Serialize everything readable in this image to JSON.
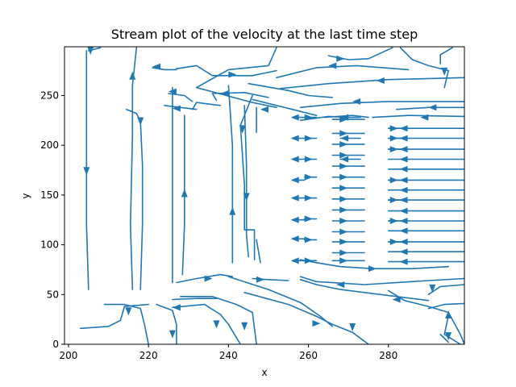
{
  "chart_data": {
    "type": "streamplot",
    "title": "Stream plot of the velocity at the last time step",
    "xlabel": "x",
    "ylabel": "y",
    "xlim": [
      199,
      299
    ],
    "ylim": [
      0,
      299
    ],
    "xticks": [
      200,
      220,
      240,
      260,
      280
    ],
    "yticks": [
      0,
      50,
      100,
      150,
      200,
      250
    ],
    "grid": false,
    "color": "#1f77b4",
    "streamlines": [
      {
        "points": [
          [
            204.5,
            295
          ],
          [
            204.5,
            200
          ],
          [
            204.5,
            120
          ],
          [
            205,
            55
          ]
        ],
        "arrow_at": [
          204.5,
          174
        ],
        "arrow_dir": "down"
      },
      {
        "points": [
          [
            208,
            298
          ],
          [
            205,
            295
          ]
        ],
        "arrow_at": [
          205.5,
          295
        ],
        "arrow_dir": "down"
      },
      {
        "points": [
          [
            217,
            298
          ],
          [
            216,
            260
          ],
          [
            216,
            210
          ],
          [
            215.5,
            120
          ],
          [
            216,
            55
          ]
        ],
        "arrow_at": [
          216,
          270
        ],
        "arrow_dir": "up"
      },
      {
        "points": [
          [
            214.5,
            236
          ],
          [
            217,
            232
          ],
          [
            218,
            224
          ],
          [
            218.5,
            180
          ],
          [
            218.5,
            120
          ],
          [
            218,
            55
          ]
        ],
        "arrow_at": [
          218,
          224
        ],
        "arrow_dir": "down"
      },
      {
        "points": [
          [
            226,
            258
          ],
          [
            226,
            200
          ],
          [
            226,
            120
          ],
          [
            226,
            62
          ]
        ]
      },
      {
        "points": [
          [
            229,
            230
          ],
          [
            229,
            180
          ],
          [
            229,
            120
          ],
          [
            228.5,
            70
          ]
        ],
        "arrow_at": [
          229,
          152
        ],
        "arrow_dir": "up"
      },
      {
        "points": [
          [
            240,
            260
          ],
          [
            241,
            200
          ],
          [
            241,
            160
          ],
          [
            241,
            110
          ],
          [
            241,
            82
          ]
        ],
        "arrow_at": [
          241,
          134
        ],
        "arrow_dir": "up"
      },
      {
        "points": [
          [
            244,
            240
          ],
          [
            244.5,
            180
          ],
          [
            244.5,
            110
          ],
          [
            245,
            88
          ]
        ],
        "arrow_at": [
          244.5,
          148
        ],
        "arrow_dir": "down"
      },
      {
        "points": [
          [
            246,
            250
          ],
          [
            243,
            220
          ],
          [
            244,
            160
          ],
          [
            244,
            115
          ],
          [
            246.5,
            115
          ],
          [
            246.5,
            85
          ]
        ],
        "arrow_at": [
          243.5,
          216
        ],
        "arrow_dir": "down"
      },
      {
        "points": [
          [
            247,
            238
          ],
          [
            247,
            213
          ]
        ]
      },
      {
        "points": [
          [
            247,
            105
          ],
          [
            248,
            82
          ]
        ]
      },
      {
        "points": [
          [
            221,
            278
          ],
          [
            224,
            276
          ],
          [
            227,
            276
          ]
        ],
        "arrow_at": [
          222,
          279
        ],
        "arrow_dir": "left"
      },
      {
        "points": [
          [
            227,
            277
          ],
          [
            232,
            280
          ],
          [
            236,
            270
          ],
          [
            246,
            270
          ],
          [
            252,
            275
          ]
        ]
      },
      {
        "points": [
          [
            225,
            252
          ],
          [
            229,
            250
          ],
          [
            231,
            244
          ]
        ],
        "arrow_at": [
          226,
          254
        ],
        "arrow_dir": "left"
      },
      {
        "points": [
          [
            224,
            240
          ],
          [
            228,
            238
          ],
          [
            232,
            236
          ]
        ],
        "arrow_at": [
          227,
          237
        ],
        "arrow_dir": "left"
      },
      {
        "points": [
          [
            231,
            236
          ],
          [
            232,
            243
          ],
          [
            238,
            240
          ]
        ]
      },
      {
        "points": [
          [
            237,
            245
          ],
          [
            236,
            252
          ],
          [
            244,
            253
          ],
          [
            250,
            248
          ]
        ],
        "arrow_at": [
          239,
          252
        ],
        "arrow_dir": "left"
      },
      {
        "points": [
          [
            252,
            298
          ],
          [
            250,
            280
          ],
          [
            240,
            276
          ],
          [
            232,
            258
          ],
          [
            246,
            243
          ],
          [
            252,
            238
          ]
        ],
        "arrow_at": [
          241,
          271
        ],
        "arrow_dir": "right"
      },
      {
        "points": [
          [
            245,
            262
          ],
          [
            255,
            255
          ],
          [
            260,
            250
          ],
          [
            266,
            248
          ]
        ]
      },
      {
        "points": [
          [
            246,
            246
          ],
          [
            252,
            240
          ],
          [
            256,
            236
          ],
          [
            262,
            230
          ]
        ],
        "arrow_at": [
          249,
          236
        ],
        "arrow_dir": "left"
      },
      {
        "points": [
          [
            252,
            268
          ],
          [
            262,
            278
          ],
          [
            272,
            280
          ],
          [
            285,
            276
          ]
        ],
        "arrow_at": [
          266,
          280
        ],
        "arrow_dir": "left"
      },
      {
        "points": [
          [
            253,
            257
          ],
          [
            265,
            262
          ],
          [
            280,
            266
          ],
          [
            299,
            268
          ]
        ],
        "arrow_at": [
          278,
          265
        ],
        "arrow_dir": "left"
      },
      {
        "points": [
          [
            258,
            238
          ],
          [
            268,
            242
          ],
          [
            280,
            244
          ],
          [
            299,
            244
          ]
        ],
        "arrow_at": [
          272,
          244
        ],
        "arrow_dir": "left"
      },
      {
        "points": [
          [
            258,
            225
          ],
          [
            265,
            229
          ],
          [
            270,
            228
          ]
        ]
      },
      {
        "points": [
          [
            264,
            228
          ],
          [
            271,
            230
          ],
          [
            275,
            228
          ]
        ]
      },
      {
        "points": [
          [
            276,
            228
          ],
          [
            285,
            230
          ],
          [
            299,
            229
          ]
        ],
        "arrow_at": [
          289,
          228
        ],
        "arrow_dir": "left"
      },
      {
        "points": [
          [
            282,
            236
          ],
          [
            290,
            238
          ],
          [
            299,
            238
          ]
        ],
        "arrow_at": [
          291,
          238
        ],
        "arrow_dir": "left"
      },
      {
        "points": [
          [
            283,
            298
          ],
          [
            286,
            286
          ],
          [
            290,
            280
          ],
          [
            295,
            275
          ],
          [
            294,
            258
          ]
        ],
        "arrow_at": [
          294,
          274
        ],
        "arrow_dir": "down"
      },
      {
        "points": [
          [
            296,
            298
          ],
          [
            293,
            291
          ],
          [
            293,
            282
          ]
        ]
      },
      {
        "points": [
          [
            281,
            298
          ],
          [
            275,
            287
          ],
          [
            270,
            286
          ],
          [
            265,
            290
          ]
        ],
        "arrow_at": [
          268,
          287
        ],
        "arrow_dir": "right"
      },
      {
        "points": [
          [
            258,
            85
          ],
          [
            262,
            82
          ],
          [
            268,
            78
          ],
          [
            276,
            76
          ],
          [
            286,
            76
          ],
          [
            295,
            78
          ]
        ],
        "arrow_at": [
          276,
          76
        ],
        "arrow_dir": "right"
      },
      {
        "points": [
          [
            299,
            66
          ],
          [
            290,
            64
          ],
          [
            274,
            60
          ],
          [
            262,
            63
          ],
          [
            258,
            68
          ]
        ],
        "arrow_at": [
          268,
          60
        ],
        "arrow_dir": "left"
      },
      {
        "points": [
          [
            299,
            60
          ],
          [
            293,
            58
          ],
          [
            290,
            50
          ]
        ],
        "arrow_at": [
          291,
          56
        ],
        "arrow_dir": "down"
      },
      {
        "points": [
          [
            299,
            41
          ],
          [
            294,
            40
          ],
          [
            290,
            36
          ]
        ]
      },
      {
        "points": [
          [
            280,
            54
          ],
          [
            284,
            44
          ],
          [
            290,
            38
          ],
          [
            295,
            32
          ],
          [
            298,
            10
          ],
          [
            299,
            0
          ]
        ]
      },
      {
        "points": [
          [
            258,
            65
          ],
          [
            262,
            60
          ],
          [
            268,
            55
          ],
          [
            290,
            44
          ]
        ],
        "arrow_at": [
          282,
          45
        ],
        "arrow_dir": "left"
      },
      {
        "points": [
          [
            244,
            52
          ],
          [
            255,
            40
          ],
          [
            262,
            28
          ],
          [
            266,
            20
          ],
          [
            271,
            12
          ],
          [
            275,
            0
          ]
        ],
        "arrow_at": [
          271,
          17
        ],
        "arrow_dir": "down"
      },
      {
        "points": [
          [
            240,
            68
          ],
          [
            250,
            55
          ],
          [
            258,
            42
          ],
          [
            263,
            28
          ],
          [
            266,
            18
          ]
        ],
        "arrow_at": [
          262,
          21
        ],
        "arrow_dir": "right"
      },
      {
        "points": [
          [
            228,
            48
          ],
          [
            236,
            48
          ],
          [
            242,
            40
          ],
          [
            246,
            32
          ],
          [
            247,
            0
          ]
        ],
        "arrow_at": [
          244,
          18
        ],
        "arrow_dir": "down"
      },
      {
        "points": [
          [
            226,
            37
          ],
          [
            234,
            40
          ],
          [
            238,
            30
          ],
          [
            240,
            20
          ],
          [
            243,
            0
          ]
        ],
        "arrow_at": [
          237,
          20
        ],
        "arrow_dir": "down"
      },
      {
        "points": [
          [
            222,
            40
          ],
          [
            226,
            34
          ],
          [
            227,
            20
          ],
          [
            227,
            0
          ]
        ],
        "arrow_at": [
          226,
          10
        ],
        "arrow_dir": "down"
      },
      {
        "points": [
          [
            203,
            16
          ],
          [
            210,
            18
          ],
          [
            213,
            24
          ],
          [
            214,
            38
          ],
          [
            220,
            40
          ]
        ],
        "arrow_at": [
          215,
          33
        ],
        "arrow_dir": "down"
      },
      {
        "points": [
          [
            209,
            40
          ],
          [
            214,
            40
          ],
          [
            218,
            36
          ],
          [
            219,
            20
          ],
          [
            220,
            0
          ]
        ]
      },
      {
        "points": [
          [
            227,
            62
          ],
          [
            232,
            66
          ],
          [
            238,
            70
          ],
          [
            241,
            68
          ]
        ],
        "arrow_at": [
          235,
          66
        ],
        "arrow_dir": "right"
      },
      {
        "points": [
          [
            226,
            45
          ],
          [
            232,
            46
          ],
          [
            237,
            46
          ]
        ],
        "arrow_at": [
          227,
          37
        ],
        "arrow_dir": "left"
      },
      {
        "points": [
          [
            246,
            66
          ],
          [
            250,
            65
          ],
          [
            255,
            64
          ]
        ],
        "arrow_at": [
          248,
          65
        ],
        "arrow_dir": "right"
      },
      {
        "points": [
          [
            295,
            29
          ],
          [
            294,
            10
          ],
          [
            298,
            0
          ]
        ],
        "arrow_at": [
          295,
          30
        ],
        "arrow_dir": "up"
      },
      {
        "points": [
          [
            293,
            10
          ],
          [
            295,
            2
          ]
        ],
        "arrow_at": [
          295,
          8
        ],
        "arrow_dir": "down"
      }
    ],
    "arrow_grid": [
      {
        "x_from": 256,
        "x_to": 259,
        "ys": [
          228,
          207,
          186,
          165,
          147,
          125,
          106,
          84
        ],
        "dir": "left"
      },
      {
        "x_from": 259,
        "x_to": 262,
        "ys": [
          228,
          207,
          186,
          168,
          147,
          126,
          105,
          84
        ],
        "dir": "right"
      },
      {
        "x_from": 266,
        "x_to": 274,
        "ys": [
          226,
          212,
          201,
          190,
          179,
          168,
          157,
          146,
          135,
          124,
          113,
          103,
          92,
          84
        ],
        "dir": "right"
      },
      {
        "x_from": 268,
        "x_to": 273,
        "ys": [
          228,
          207,
          186
        ],
        "dir": "left"
      },
      {
        "x_from": 280,
        "x_to": 299,
        "ys": [
          217,
          207,
          196,
          186,
          176,
          165,
          155,
          145,
          134,
          124,
          114,
          103,
          93,
          83
        ],
        "dir": "left"
      },
      {
        "x_from": 280,
        "x_to": 284,
        "ys": [
          217,
          207,
          196,
          165,
          145,
          124,
          103
        ],
        "dir": "right"
      }
    ]
  }
}
